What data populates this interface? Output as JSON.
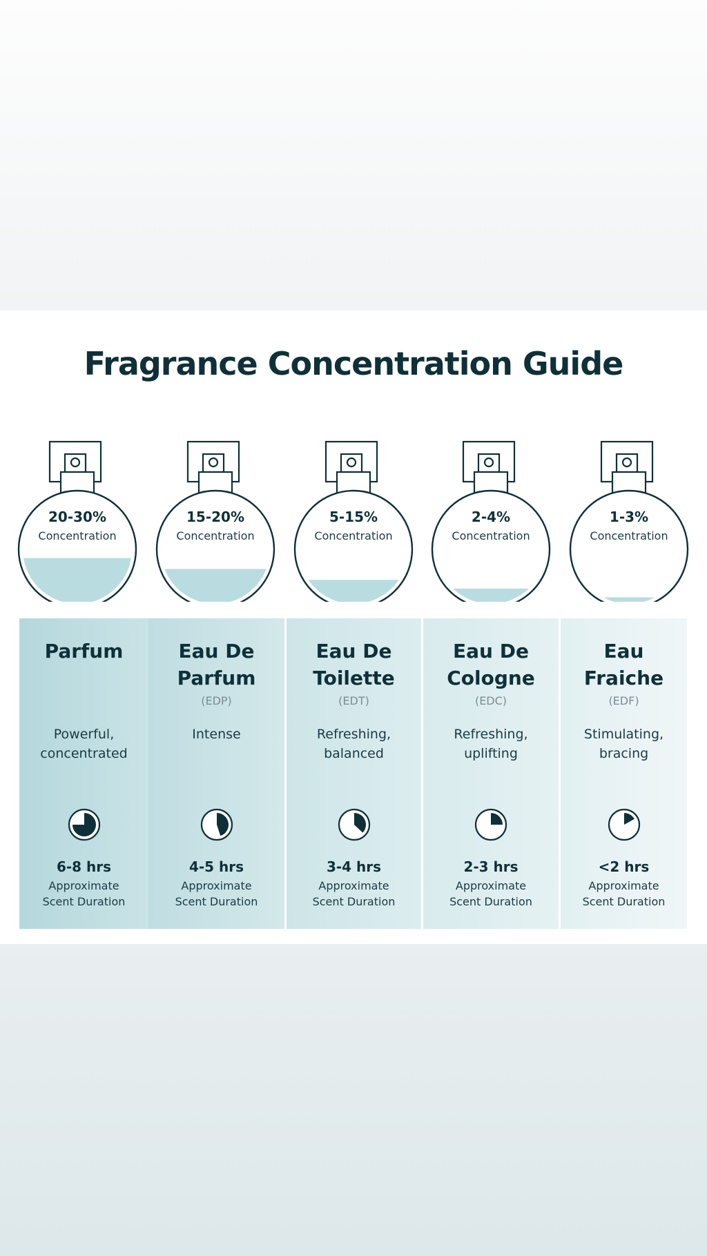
{
  "title": "Fragrance Concentration Guide",
  "colors": {
    "text": "#0f3038",
    "liquid": "#b9dce0",
    "column_strong": "#c0dde1",
    "column_light": "#eef5f7"
  },
  "types": [
    {
      "concentration": "20-30%",
      "concentration_label": "Concentration",
      "fill_level": 0.42,
      "name": "Parfum",
      "abbr": "",
      "description": "Powerful,\nconcentrated",
      "clock_fraction": 0.75,
      "clock_icon": "clock-pie-icon",
      "duration": "6-8 hrs",
      "duration_label": "Approximate\nScent Duration"
    },
    {
      "concentration": "15-20%",
      "concentration_label": "Concentration",
      "fill_level": 0.32,
      "name": "Eau De\nParfum",
      "abbr": "(EDP)",
      "description": "Intense",
      "clock_fraction": 0.45,
      "clock_icon": "clock-pie-icon",
      "duration": "4-5 hrs",
      "duration_label": "Approximate\nScent Duration"
    },
    {
      "concentration": "5-15%",
      "concentration_label": "Concentration",
      "fill_level": 0.22,
      "name": "Eau De\nToilette",
      "abbr": "(EDT)",
      "description": "Refreshing,\nbalanced",
      "clock_fraction": 0.37,
      "clock_icon": "clock-pie-icon",
      "duration": "3-4 hrs",
      "duration_label": "Approximate\nScent Duration"
    },
    {
      "concentration": "2-4%",
      "concentration_label": "Concentration",
      "fill_level": 0.14,
      "name": "Eau De\nCologne",
      "abbr": "(EDC)",
      "description": "Refreshing,\nuplifting",
      "clock_fraction": 0.25,
      "clock_icon": "clock-pie-icon",
      "duration": "2-3 hrs",
      "duration_label": "Approximate\nScent Duration"
    },
    {
      "concentration": "1-3%",
      "concentration_label": "Concentration",
      "fill_level": 0.06,
      "name": "Eau\nFraiche",
      "abbr": "(EDF)",
      "description": "Stimulating,\nbracing",
      "clock_fraction": 0.17,
      "clock_icon": "clock-pie-icon",
      "duration": "<2 hrs",
      "duration_label": "Approximate\nScent Duration"
    }
  ]
}
